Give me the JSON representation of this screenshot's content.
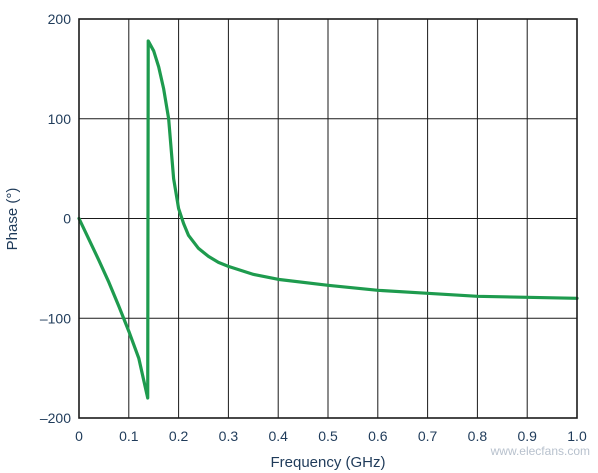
{
  "chart_data": {
    "type": "line",
    "title": "",
    "xlabel": "Frequency (GHz)",
    "ylabel": "Phase (°)",
    "xlim": [
      0,
      1.0
    ],
    "ylim": [
      -200,
      200
    ],
    "x_ticks": [
      "0",
      "0.1",
      "0.2",
      "0.3",
      "0.4",
      "0.5",
      "0.6",
      "0.7",
      "0.8",
      "0.9",
      "1.0"
    ],
    "x_tick_values": [
      0,
      0.1,
      0.2,
      0.3,
      0.4,
      0.5,
      0.6,
      0.7,
      0.8,
      0.9,
      1.0
    ],
    "y_ticks": [
      "200",
      "100",
      "0",
      "–100",
      "–200"
    ],
    "y_tick_values": [
      200,
      100,
      0,
      -100,
      -200
    ],
    "grid": true,
    "series_color": "#1e9b4e",
    "series": [
      {
        "x": [
          0,
          0.02,
          0.04,
          0.06,
          0.08,
          0.1,
          0.12,
          0.138,
          0.139,
          0.15,
          0.16,
          0.17,
          0.18,
          0.19,
          0.2,
          0.21,
          0.22,
          0.24,
          0.26,
          0.28,
          0.3,
          0.35,
          0.4,
          0.5,
          0.6,
          0.7,
          0.8,
          0.9,
          1.0
        ],
        "y": [
          0,
          -21,
          -42,
          -64,
          -88,
          -113,
          -140,
          -180,
          178,
          168,
          152,
          130,
          100,
          40,
          10,
          -5,
          -17,
          -30,
          -38,
          -44,
          -48,
          -56,
          -61,
          -67,
          -72,
          -75,
          -78,
          -79,
          -80
        ]
      }
    ]
  },
  "watermark": "www.elecfans.com"
}
